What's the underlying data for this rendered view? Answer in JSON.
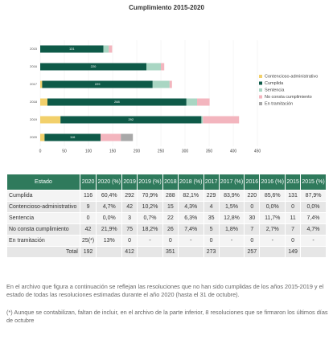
{
  "chart_data": {
    "type": "stacked_barh",
    "title": "Cumplimiento 2015-2020",
    "categories": [
      "2015",
      "2016",
      "2017",
      "2018",
      "2019",
      "2020"
    ],
    "series": [
      {
        "name": "Contencioso-administrativo",
        "color": "#f2d06b",
        "values": [
          0,
          0,
          4,
          15,
          42,
          9
        ]
      },
      {
        "name": "Cumplida",
        "color": "#0e5a48",
        "values": [
          131,
          220,
          229,
          288,
          292,
          116
        ],
        "data_labels": true
      },
      {
        "name": "Sentencia",
        "color": "#a9d6c3",
        "values": [
          11,
          30,
          35,
          22,
          3,
          0
        ]
      },
      {
        "name": "No consta cumplimiento",
        "color": "#f3b5be",
        "values": [
          7,
          7,
          5,
          26,
          75,
          42
        ]
      },
      {
        "name": "En tramitación",
        "color": "#a8a8a8",
        "values": [
          0,
          0,
          0,
          0,
          0,
          25
        ]
      }
    ],
    "xlim": [
      0,
      450
    ],
    "xticks": [
      0,
      50,
      100,
      150,
      200,
      250,
      300,
      350,
      400,
      450
    ],
    "grid": true,
    "legend": "right"
  },
  "table": {
    "header": [
      "Estado",
      "2020",
      "2020 (%)",
      "2019",
      "2019 (%)",
      "2018",
      "2018 (%)",
      "2017",
      "2017 (%)",
      "2016",
      "2016 (%)",
      "2015",
      "2015 (%)"
    ],
    "rows": [
      [
        "Cumplida",
        "116",
        "60,4%",
        "292",
        "70,9%",
        "288",
        "82,1%",
        "229",
        "83,9%",
        "220",
        "85,6%",
        "131",
        "87,9%"
      ],
      [
        "Contencioso-administrativo",
        "9",
        "4,7%",
        "42",
        "10,2%",
        "15",
        "4,3%",
        "4",
        "1,5%",
        "0",
        "0,0%",
        "0",
        "0,0%"
      ],
      [
        "Sentencia",
        "0",
        "0,0%",
        "3",
        "0,7%",
        "22",
        "6,3%",
        "35",
        "12,8%",
        "30",
        "11,7%",
        "11",
        "7,4%"
      ],
      [
        "No consta cumplimiento",
        "42",
        "21,9%",
        "75",
        "18,2%",
        "26",
        "7,4%",
        "5",
        "1,8%",
        "7",
        "2,7%",
        "7",
        "4,7%"
      ],
      [
        "En tramitación",
        "25(*)",
        "13%",
        "0",
        "-",
        "0",
        "-",
        "0",
        "-",
        "0",
        "-",
        "0",
        "-"
      ],
      [
        "Total",
        "192",
        null,
        "412",
        null,
        "351",
        null,
        "273",
        null,
        "257",
        null,
        "149",
        null
      ]
    ]
  },
  "notes": [
    "En el archivo que figura a continuación se reflejan las resoluciones que no han sido cumplidas de los años 2015-2019 y el estado de todas las resoluciones estimadas durante el año 2020 (hasta el 31 de octubre).",
    "(*) Aunque se contabilizan, faltan de incluir, en el archivo de la parte inferior, 8 resoluciones que se firmaron los últimos días de octubre"
  ]
}
